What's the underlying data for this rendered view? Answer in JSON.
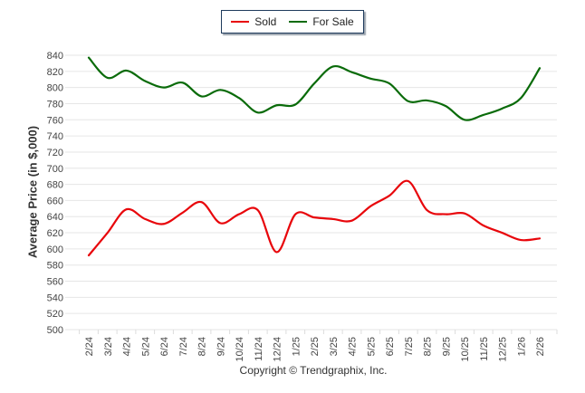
{
  "chart_data": {
    "type": "line",
    "title": "",
    "xlabel": "",
    "ylabel": "Average Price (in $,000)",
    "ylim": [
      500,
      840
    ],
    "y_ticks": [
      500,
      520,
      540,
      560,
      580,
      600,
      620,
      640,
      660,
      680,
      700,
      720,
      740,
      760,
      780,
      800,
      820,
      840
    ],
    "grid": true,
    "legend_position": "top-center",
    "categories": [
      "2/24",
      "3/24",
      "4/24",
      "5/24",
      "6/24",
      "7/24",
      "8/24",
      "9/24",
      "10/24",
      "11/24",
      "12/24",
      "1/25",
      "2/25",
      "3/25",
      "4/25",
      "5/25",
      "6/25",
      "7/25",
      "8/25",
      "9/25",
      "10/25",
      "11/25",
      "12/25",
      "1/26",
      "2/26"
    ],
    "series": [
      {
        "name": "Sold",
        "color": "#e8060b",
        "values": [
          592,
          620,
          649,
          637,
          631,
          645,
          658,
          632,
          643,
          648,
          596,
          643,
          639,
          637,
          635,
          653,
          666,
          684,
          648,
          643,
          644,
          629,
          620,
          611,
          613
        ]
      },
      {
        "name": "For Sale",
        "color": "#0a6b0a",
        "values": [
          837,
          812,
          821,
          808,
          800,
          806,
          789,
          797,
          787,
          769,
          778,
          779,
          805,
          826,
          819,
          811,
          805,
          783,
          784,
          777,
          760,
          766,
          774,
          787,
          824
        ]
      }
    ]
  },
  "legend": {
    "items": [
      {
        "label": "Sold",
        "color": "#e8060b"
      },
      {
        "label": "For Sale",
        "color": "#0a6b0a"
      }
    ]
  },
  "footer": {
    "copyright": "Copyright © Trendgraphix, Inc."
  }
}
